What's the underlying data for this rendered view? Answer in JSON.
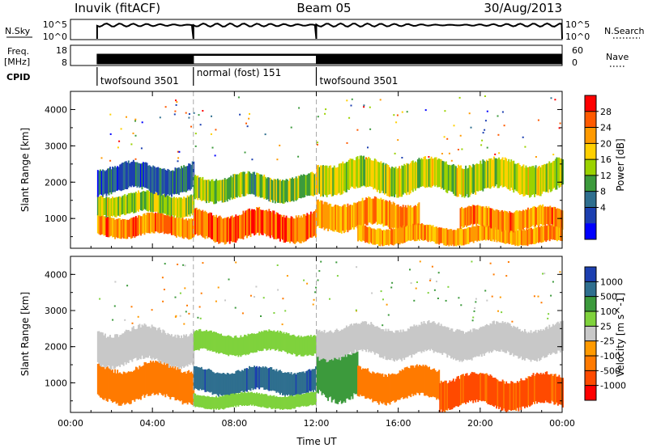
{
  "header": {
    "station": "Inuvik (fitACF)",
    "beam": "Beam 05",
    "date": "30/Aug/2013"
  },
  "status_panels": {
    "nsky_label": "N.Sky",
    "nsky_ticks": [
      "10^5",
      "10^0"
    ],
    "nsearch_label": "N.Search",
    "freq_label": "Freq.",
    "freq_unit": "[MHz]",
    "freq_ticks": [
      "18",
      "8"
    ],
    "nave_label": "Nave",
    "nave_ticks": [
      "60",
      "0"
    ],
    "cpid_label": "CPID",
    "cpid_segments": [
      {
        "label": "twofsound 3501",
        "start_hour": 1.3,
        "end_hour": 6.0
      },
      {
        "label": "normal (fost) 151",
        "start_hour": 6.0,
        "end_hour": 12.0
      },
      {
        "label": "twofsound 3501",
        "start_hour": 12.0,
        "end_hour": 24.0
      }
    ]
  },
  "chart_data": [
    {
      "type": "heatmap",
      "panel": "power",
      "ylabel": "Slant Range [km]",
      "xlim_hours": [
        0,
        24
      ],
      "ylim_km": [
        180,
        4500
      ],
      "yticks": [
        1000,
        2000,
        3000,
        4000
      ],
      "colorbar": {
        "label": "Power [dB]",
        "ticks": [
          "28",
          "24",
          "20",
          "16",
          "12",
          "8",
          "4"
        ],
        "colors": [
          "#ff0000",
          "#ff5a00",
          "#ff9a00",
          "#ffd000",
          "#9bd200",
          "#3c9a3c",
          "#2f6f8f",
          "#1c3fb0",
          "#0000ff"
        ]
      },
      "regions": [
        {
          "t0": 1.3,
          "t1": 6.0,
          "r0": 500,
          "r1": 1100,
          "level": 24
        },
        {
          "t0": 1.3,
          "t1": 6.0,
          "r0": 1100,
          "r1": 1700,
          "level": 16
        },
        {
          "t0": 1.3,
          "t1": 6.0,
          "r0": 1700,
          "r1": 2500,
          "level": 6
        },
        {
          "t0": 6.0,
          "t1": 12.0,
          "r0": 400,
          "r1": 1200,
          "level": 26
        },
        {
          "t0": 6.0,
          "t1": 12.0,
          "r0": 1500,
          "r1": 2200,
          "level": 14
        },
        {
          "t0": 12.0,
          "t1": 17.0,
          "r0": 700,
          "r1": 1500,
          "level": 22
        },
        {
          "t0": 12.0,
          "t1": 24.0,
          "r0": 1700,
          "r1": 2600,
          "level": 16
        },
        {
          "t0": 14.0,
          "t1": 24.0,
          "r0": 300,
          "r1": 800,
          "level": 22
        },
        {
          "t0": 19.0,
          "t1": 24.0,
          "r0": 700,
          "r1": 1300,
          "level": 24
        }
      ]
    },
    {
      "type": "heatmap",
      "panel": "velocity",
      "xlabel": "Time UT",
      "ylabel": "Slant Range [km]",
      "xlim_hours": [
        0,
        24
      ],
      "ylim_km": [
        180,
        4500
      ],
      "yticks": [
        1000,
        2000,
        3000,
        4000
      ],
      "xtick_labels": [
        "00:00",
        "04:00",
        "08:00",
        "12:00",
        "16:00",
        "20:00",
        "00:00"
      ],
      "colorbar": {
        "label": "Velocity [m s^-1]",
        "ticks": [
          "1000",
          "500",
          "100",
          "25",
          "-25",
          "-100",
          "-500",
          "-1000"
        ],
        "colors": [
          "#1c3fb0",
          "#2f6f8f",
          "#3c9a3c",
          "#7fd23c",
          "#c8c8c8",
          "#ff9a00",
          "#ff7a00",
          "#ff4a00",
          "#ff0000"
        ]
      },
      "regions": [
        {
          "t0": 1.3,
          "t1": 6.0,
          "r0": 500,
          "r1": 1500,
          "level": -200
        },
        {
          "t0": 1.3,
          "t1": 6.0,
          "r0": 1500,
          "r1": 2500,
          "level": 0
        },
        {
          "t0": 6.0,
          "t1": 12.0,
          "r0": 1800,
          "r1": 2400,
          "level": 50
        },
        {
          "t0": 6.0,
          "t1": 12.0,
          "r0": 700,
          "r1": 1400,
          "level": 800
        },
        {
          "t0": 6.0,
          "t1": 12.0,
          "r0": 300,
          "r1": 700,
          "level": 60
        },
        {
          "t0": 12.0,
          "t1": 14.0,
          "r0": 600,
          "r1": 2000,
          "level": 200
        },
        {
          "t0": 12.0,
          "t1": 24.0,
          "r0": 1700,
          "r1": 2600,
          "level": 0
        },
        {
          "t0": 14.0,
          "t1": 18.0,
          "r0": 500,
          "r1": 1400,
          "level": -300
        },
        {
          "t0": 18.0,
          "t1": 24.0,
          "r0": 300,
          "r1": 1200,
          "level": -600
        }
      ]
    }
  ]
}
